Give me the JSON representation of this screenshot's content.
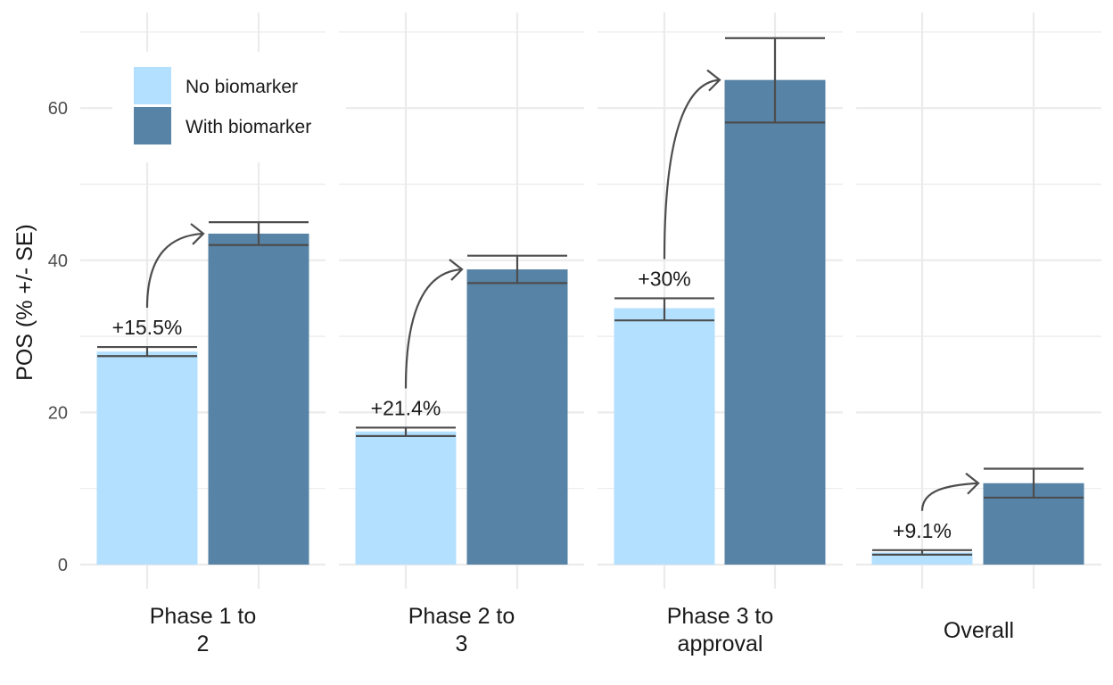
{
  "chart_data": {
    "type": "bar",
    "ylabel": "POS (% +/- SE)",
    "ylim": [
      0,
      70
    ],
    "yticks": [
      0,
      20,
      40,
      60
    ],
    "grid": true,
    "legend_position": "top-left",
    "categories": [
      "Phase 1 to\n2",
      "Phase 2 to\n3",
      "Phase 3 to\napproval",
      "Overall"
    ],
    "series": [
      {
        "name": "No biomarker",
        "color": "#b3e0ff",
        "values": [
          28.0,
          17.5,
          33.7,
          1.6
        ],
        "se_low": [
          27.4,
          16.9,
          32.1,
          1.3
        ],
        "se_high": [
          28.6,
          18.0,
          35.0,
          1.9
        ]
      },
      {
        "name": "With biomarker",
        "color": "#5783a6",
        "values": [
          43.5,
          38.8,
          63.7,
          10.7
        ],
        "se_low": [
          42.0,
          37.0,
          58.1,
          8.8
        ],
        "se_high": [
          45.0,
          40.6,
          69.2,
          12.6
        ]
      }
    ],
    "annotations": [
      "+15.5%",
      "+21.4%",
      "+30%",
      "+9.1%"
    ]
  }
}
